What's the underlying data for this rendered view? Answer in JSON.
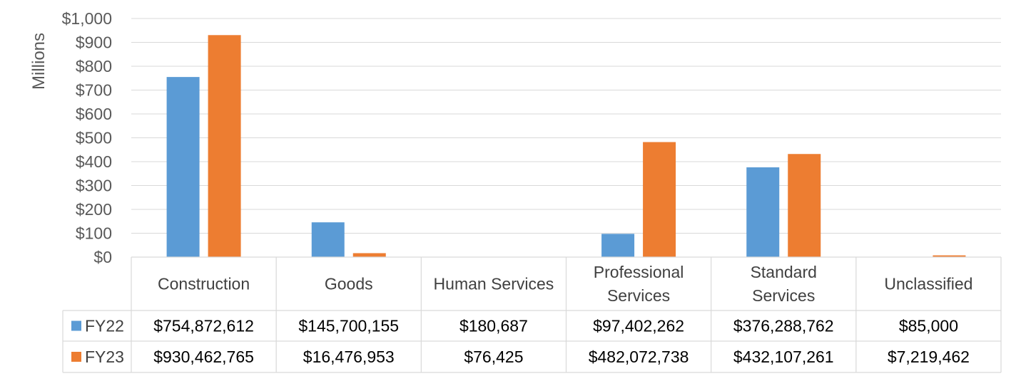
{
  "chart_data": {
    "type": "bar",
    "ylabel": "Millions",
    "ylim": [
      0,
      1000
    ],
    "yticks": [
      "$0",
      "$100",
      "$200",
      "$300",
      "$400",
      "$500",
      "$600",
      "$700",
      "$800",
      "$900",
      "$1,000"
    ],
    "grid": true,
    "legend_placement": "data-table-left",
    "categories": [
      [
        "Construction"
      ],
      [
        "Goods"
      ],
      [
        "Human Services"
      ],
      [
        "Professional",
        "Services"
      ],
      [
        "Standard",
        "Services"
      ],
      [
        "Unclassified"
      ]
    ],
    "series": [
      {
        "name": "FY22",
        "color": "#5B9BD5",
        "values": [
          754.872612,
          145.700155,
          0.180687,
          97.402262,
          376.288762,
          0.085
        ],
        "labels": [
          "$754,872,612",
          "$145,700,155",
          "$180,687",
          "$97,402,262",
          "$376,288,762",
          "$85,000"
        ]
      },
      {
        "name": "FY23",
        "color": "#ED7D31",
        "values": [
          930.462765,
          16.476953,
          0.076425,
          482.072738,
          432.107261,
          7.219462
        ],
        "labels": [
          "$930,462,765",
          "$16,476,953",
          "$76,425",
          "$482,072,738",
          "$432,107,261",
          "$7,219,462"
        ]
      }
    ]
  }
}
